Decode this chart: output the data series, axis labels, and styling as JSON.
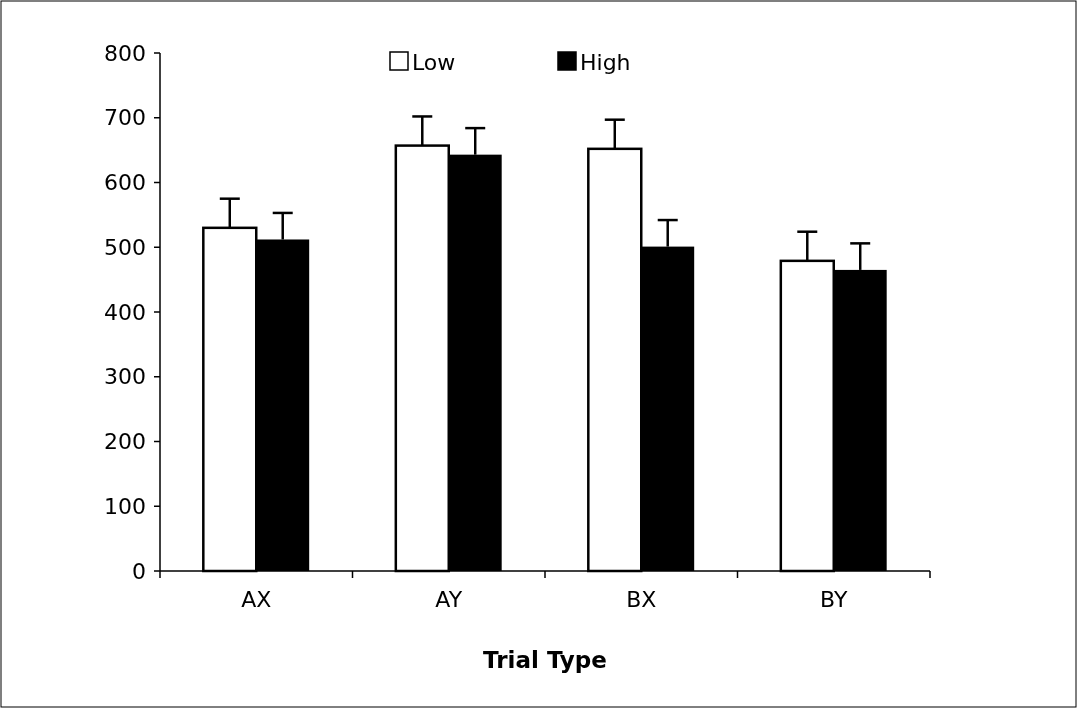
{
  "chart_data": {
    "type": "bar",
    "xlabel": "Trial Type",
    "categories": [
      "AX",
      "AY",
      "BX",
      "BY"
    ],
    "series": [
      {
        "name": "Low",
        "color": "#ffffff",
        "values": [
          530,
          657,
          652,
          479
        ],
        "errors": [
          [
            530,
            575
          ],
          [
            657,
            702
          ],
          [
            652,
            697
          ],
          [
            479,
            524
          ]
        ]
      },
      {
        "name": "High",
        "color": "#000000",
        "values": [
          512,
          643,
          501,
          465
        ],
        "errors": [
          [
            512,
            553
          ],
          [
            643,
            684
          ],
          [
            501,
            542
          ],
          [
            465,
            506
          ]
        ]
      }
    ],
    "ylim": [
      0,
      800
    ],
    "yticks": [
      0,
      100,
      200,
      300,
      400,
      500,
      600,
      700,
      800
    ],
    "legend": "top",
    "grid": false
  }
}
